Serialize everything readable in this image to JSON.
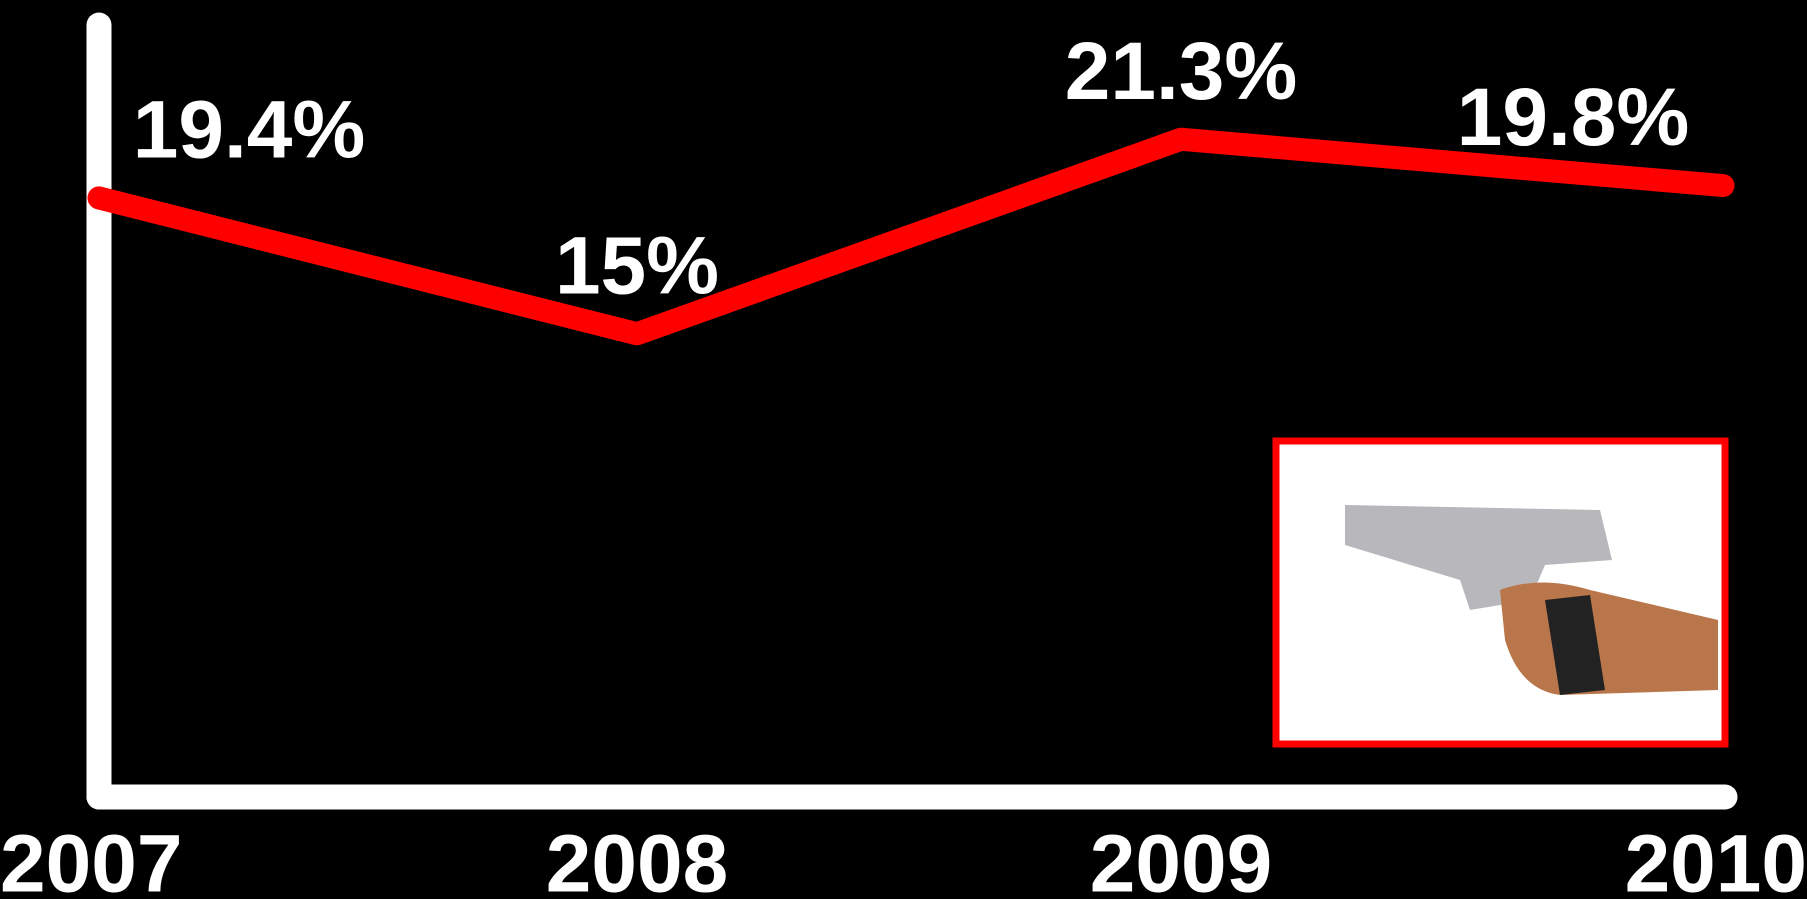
{
  "chart_data": {
    "type": "line",
    "categories": [
      "2007",
      "2008",
      "2009",
      "2010"
    ],
    "series": [
      {
        "color": "#ff0000",
        "values": [
          19.4,
          15,
          21.3,
          19.8
        ],
        "value_labels": [
          "19.4%",
          "15%",
          "21.3%",
          "19.8%"
        ]
      }
    ],
    "ylim": [
      0,
      25
    ]
  }
}
